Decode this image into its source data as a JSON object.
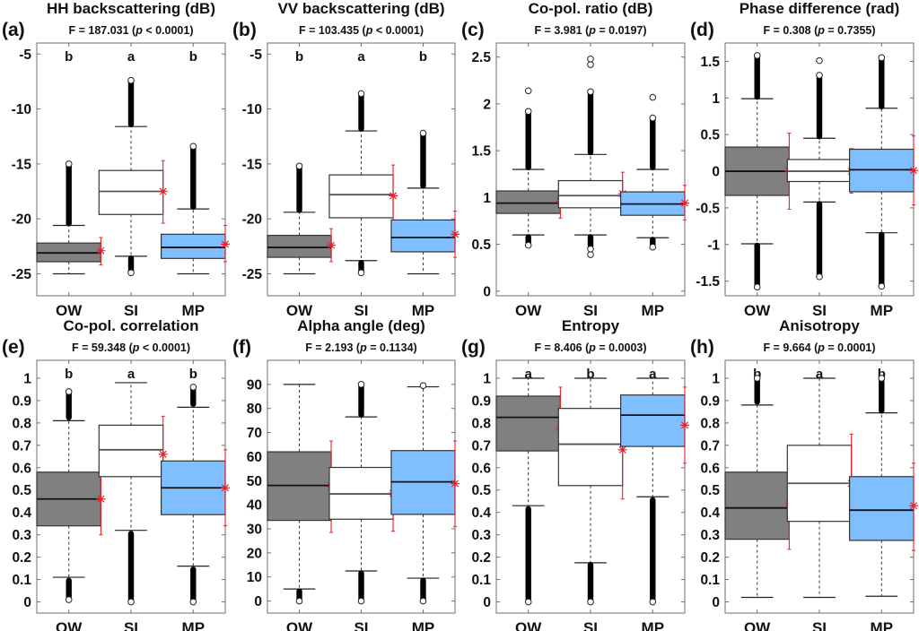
{
  "figure": {
    "colors": {
      "OW": "#808080",
      "SI": "#ffffff",
      "MP": "#80bfff",
      "mean_marker": "#e8212a",
      "outlier": "#000000"
    },
    "categories": [
      "OW",
      "SI",
      "MP"
    ],
    "legend_note": "box = IQR with median; dashed whiskers; circles = outliers; red asterisk = mean with red error bar"
  },
  "chart_data": [
    {
      "type": "boxplot",
      "panel": "(a)",
      "title": "HH backscattering (dB)",
      "stat_prefix": "F = 187.031 (",
      "p_sym": "p",
      "stat_suffix": " < 0.0001)",
      "ylim": [
        -27,
        -4
      ],
      "yticks": [
        -25,
        -20,
        -15,
        -10,
        -5
      ],
      "ytick_labels": [
        "-25",
        "-20",
        "-15",
        "-10",
        "-5"
      ],
      "group_letters": [
        "b",
        "a",
        "b"
      ],
      "categories": [
        "OW",
        "SI",
        "MP"
      ],
      "boxes": [
        {
          "name": "OW",
          "q1": -23.9,
          "median": -23.1,
          "q3": -22.2,
          "wlo": -25.0,
          "whi": -20.6,
          "out_hi": [
            -20.5,
            -15.0
          ],
          "out_lo": null,
          "mean": -22.9,
          "err_lo": -24.2,
          "err_hi": -21.7
        },
        {
          "name": "SI",
          "q1": -19.6,
          "median": -17.5,
          "q3": -15.6,
          "wlo": -23.4,
          "whi": -11.6,
          "out_hi": [
            -11.5,
            -7.4
          ],
          "out_lo": [
            -23.5,
            -24.9
          ],
          "mean": -17.5,
          "err_lo": -20.4,
          "err_hi": -14.7
        },
        {
          "name": "MP",
          "q1": -23.6,
          "median": -22.6,
          "q3": -21.4,
          "wlo": -25.0,
          "whi": -19.1,
          "out_hi": [
            -19.0,
            -13.4
          ],
          "out_lo": null,
          "mean": -22.3,
          "err_lo": -23.9,
          "err_hi": -20.6
        }
      ]
    },
    {
      "type": "boxplot",
      "panel": "(b)",
      "title": "VV backscattering (dB)",
      "stat_prefix": "F = 103.435 (",
      "p_sym": "p",
      "stat_suffix": " < 0.0001)",
      "ylim": [
        -27,
        -4
      ],
      "yticks": [
        -25,
        -20,
        -15,
        -10,
        -5
      ],
      "ytick_labels": [
        "-25",
        "-20",
        "-15",
        "-10",
        "-5"
      ],
      "group_letters": [
        "b",
        "a",
        "b"
      ],
      "categories": [
        "OW",
        "SI",
        "MP"
      ],
      "boxes": [
        {
          "name": "OW",
          "q1": -23.5,
          "median": -22.6,
          "q3": -21.5,
          "wlo": -25.0,
          "whi": -19.4,
          "out_hi": [
            -19.3,
            -15.2
          ],
          "out_lo": null,
          "mean": -22.4,
          "err_lo": -23.9,
          "err_hi": -20.9
        },
        {
          "name": "SI",
          "q1": -19.9,
          "median": -17.8,
          "q3": -16.0,
          "wlo": -23.8,
          "whi": -12.0,
          "out_hi": [
            -11.9,
            -8.6
          ],
          "out_lo": [
            -23.9,
            -24.9
          ],
          "mean": -17.9,
          "err_lo": -20.6,
          "err_hi": -15.1
        },
        {
          "name": "MP",
          "q1": -23.0,
          "median": -21.7,
          "q3": -20.1,
          "wlo": -25.0,
          "whi": -17.2,
          "out_hi": [
            -17.1,
            -12.2
          ],
          "out_lo": null,
          "mean": -21.4,
          "err_lo": -23.5,
          "err_hi": -19.3
        }
      ]
    },
    {
      "type": "boxplot",
      "panel": "(c)",
      "title": "Co-pol. ratio (dB)",
      "stat_prefix": "F = 3.981 (",
      "p_sym": "p",
      "stat_suffix": " = 0.0197)",
      "ylim": [
        -0.05,
        2.65
      ],
      "yticks": [
        0,
        0.5,
        1,
        1.5,
        2,
        2.5
      ],
      "ytick_labels": [
        "0",
        "0.5",
        "1",
        "1.5",
        "2",
        "2.5"
      ],
      "group_letters": [
        "",
        "",
        ""
      ],
      "categories": [
        "OW",
        "SI",
        "MP"
      ],
      "boxes": [
        {
          "name": "OW",
          "q1": 0.83,
          "median": 0.94,
          "q3": 1.07,
          "wlo": 0.6,
          "whi": 1.3,
          "out_hi": [
            1.31,
            1.92
          ],
          "out_lo": [
            0.59,
            0.49
          ],
          "mean": 0.96,
          "err_lo": 0.78,
          "err_hi": 1.14,
          "extra_out": [
            2.14
          ]
        },
        {
          "name": "SI",
          "q1": 0.89,
          "median": 1.02,
          "q3": 1.18,
          "wlo": 0.6,
          "whi": 1.46,
          "out_hi": [
            1.47,
            2.13
          ],
          "out_lo": [
            0.59,
            0.45
          ],
          "mean": 1.04,
          "err_lo": 0.82,
          "err_hi": 1.27,
          "extra_out": [
            2.42,
            2.48,
            0.39
          ]
        },
        {
          "name": "MP",
          "q1": 0.81,
          "median": 0.93,
          "q3": 1.06,
          "wlo": 0.57,
          "whi": 1.3,
          "out_hi": [
            1.31,
            1.85
          ],
          "out_lo": [
            0.56,
            0.47
          ],
          "mean": 0.94,
          "err_lo": 0.76,
          "err_hi": 1.13,
          "extra_out": [
            2.07
          ]
        }
      ]
    },
    {
      "type": "boxplot",
      "panel": "(d)",
      "title": "Phase difference (rad)",
      "stat_prefix": "F = 0.308 (",
      "p_sym": "p",
      "stat_suffix": " = 0.7355)",
      "ylim": [
        -1.7,
        1.75
      ],
      "yticks": [
        -1.5,
        -1,
        -0.5,
        0,
        0.5,
        1,
        1.5
      ],
      "ytick_labels": [
        "-1.5",
        "-1",
        "-0.5",
        "0",
        "0.5",
        "1",
        "1.5"
      ],
      "group_letters": [
        "",
        "",
        ""
      ],
      "categories": [
        "OW",
        "SI",
        "MP"
      ],
      "boxes": [
        {
          "name": "OW",
          "q1": -0.33,
          "median": 0.0,
          "q3": 0.33,
          "wlo": -0.99,
          "whi": 0.99,
          "out_hi": [
            1.0,
            1.58
          ],
          "out_lo": [
            -1.0,
            -1.58
          ],
          "mean": 0.0,
          "err_lo": -0.52,
          "err_hi": 0.52
        },
        {
          "name": "SI",
          "q1": -0.14,
          "median": 0.0,
          "q3": 0.16,
          "wlo": -0.42,
          "whi": 0.45,
          "out_hi": [
            0.46,
            1.31
          ],
          "out_lo": [
            -0.43,
            -1.44
          ],
          "mean": 0.0,
          "err_lo": -0.3,
          "err_hi": 0.31,
          "extra_out": [
            1.51
          ]
        },
        {
          "name": "MP",
          "q1": -0.28,
          "median": 0.02,
          "q3": 0.3,
          "wlo": -0.84,
          "whi": 0.86,
          "out_hi": [
            0.87,
            1.55
          ],
          "out_lo": [
            -0.85,
            -1.57
          ],
          "mean": 0.01,
          "err_lo": -0.46,
          "err_hi": 0.48
        }
      ]
    },
    {
      "type": "boxplot",
      "panel": "(e)",
      "title": "Co-pol. correlation",
      "stat_prefix": "F = 59.348 (",
      "p_sym": "p",
      "stat_suffix": " < 0.0001)",
      "ylim": [
        -0.05,
        1.08
      ],
      "yticks": [
        0,
        0.1,
        0.2,
        0.3,
        0.4,
        0.5,
        0.6,
        0.7,
        0.8,
        0.9,
        1
      ],
      "ytick_labels": [
        "0",
        "0.1",
        "0.2",
        "0.3",
        "0.4",
        "0.5",
        "0.6",
        "0.7",
        "0.8",
        "0.9",
        "1"
      ],
      "group_letters": [
        "b",
        "a",
        "b"
      ],
      "categories": [
        "OW",
        "SI",
        "MP"
      ],
      "boxes": [
        {
          "name": "OW",
          "q1": 0.34,
          "median": 0.46,
          "q3": 0.58,
          "wlo": 0.11,
          "whi": 0.81,
          "out_hi": [
            0.82,
            0.94
          ],
          "out_lo": [
            0.1,
            0.01
          ],
          "mean": 0.46,
          "err_lo": 0.3,
          "err_hi": 0.62
        },
        {
          "name": "SI",
          "q1": 0.56,
          "median": 0.68,
          "q3": 0.79,
          "wlo": 0.32,
          "whi": 0.98,
          "out_hi": null,
          "out_lo": [
            0.31,
            0.0
          ],
          "mean": 0.66,
          "err_lo": 0.49,
          "err_hi": 0.83
        },
        {
          "name": "MP",
          "q1": 0.39,
          "median": 0.51,
          "q3": 0.63,
          "wlo": 0.16,
          "whi": 0.87,
          "out_hi": [
            0.88,
            0.96
          ],
          "out_lo": [
            0.15,
            0.0
          ],
          "mean": 0.51,
          "err_lo": 0.34,
          "err_hi": 0.68
        }
      ]
    },
    {
      "type": "boxplot",
      "panel": "(f)",
      "title": "Alpha angle (deg)",
      "stat_prefix": "F = 2.193 (",
      "p_sym": "p",
      "stat_suffix": " = 0.1134)",
      "ylim": [
        -5,
        100
      ],
      "yticks": [
        0,
        10,
        20,
        30,
        40,
        50,
        60,
        70,
        80,
        90
      ],
      "ytick_labels": [
        "0",
        "10",
        "20",
        "30",
        "40",
        "50",
        "60",
        "70",
        "80",
        "90"
      ],
      "group_letters": [
        "",
        "",
        ""
      ],
      "categories": [
        "OW",
        "SI",
        "MP"
      ],
      "boxes": [
        {
          "name": "OW",
          "q1": 33.5,
          "median": 48.0,
          "q3": 62.0,
          "wlo": 5.0,
          "whi": 90.0,
          "out_hi": null,
          "out_lo": [
            4.5,
            0.0
          ],
          "mean": 47.5,
          "err_lo": 28.5,
          "err_hi": 66.5
        },
        {
          "name": "SI",
          "q1": 34.0,
          "median": 44.5,
          "q3": 55.5,
          "wlo": 12.5,
          "whi": 76.5,
          "out_hi": [
            77.0,
            90.0
          ],
          "out_lo": [
            12.0,
            0.0
          ],
          "mean": 44.8,
          "err_lo": 29.0,
          "err_hi": 60.5
        },
        {
          "name": "MP",
          "q1": 36.0,
          "median": 49.5,
          "q3": 62.5,
          "wlo": 9.5,
          "whi": 89.0,
          "out_hi": null,
          "out_lo": [
            9.0,
            0.0
          ],
          "mean": 48.8,
          "err_lo": 31.0,
          "err_hi": 66.5,
          "extra_out": [
            89.5
          ]
        }
      ]
    },
    {
      "type": "boxplot",
      "panel": "(g)",
      "title": "Entropy",
      "stat_prefix": "F = 8.406 (",
      "p_sym": "p",
      "stat_suffix": " = 0.0003)",
      "ylim": [
        -0.05,
        1.08
      ],
      "yticks": [
        0,
        0.1,
        0.2,
        0.3,
        0.4,
        0.5,
        0.6,
        0.7,
        0.8,
        0.9,
        1
      ],
      "ytick_labels": [
        "0",
        "0.1",
        "0.2",
        "0.3",
        "0.4",
        "0.5",
        "0.6",
        "0.7",
        "0.8",
        "0.9",
        "1"
      ],
      "group_letters": [
        "a",
        "b",
        "a"
      ],
      "categories": [
        "OW",
        "SI",
        "MP"
      ],
      "boxes": [
        {
          "name": "OW",
          "q1": 0.675,
          "median": 0.825,
          "q3": 0.92,
          "wlo": 0.43,
          "whi": 1.0,
          "out_hi": null,
          "out_lo": [
            0.42,
            0.0
          ],
          "mean": 0.775,
          "err_lo": 0.595,
          "err_hi": 0.96
        },
        {
          "name": "SI",
          "q1": 0.52,
          "median": 0.705,
          "q3": 0.865,
          "wlo": 0.175,
          "whi": 1.0,
          "out_hi": null,
          "out_lo": [
            0.17,
            0.0
          ],
          "mean": 0.68,
          "err_lo": 0.46,
          "err_hi": 0.895
        },
        {
          "name": "MP",
          "q1": 0.695,
          "median": 0.835,
          "q3": 0.925,
          "wlo": 0.47,
          "whi": 1.0,
          "out_hi": null,
          "out_lo": [
            0.46,
            0.0
          ],
          "mean": 0.79,
          "err_lo": 0.62,
          "err_hi": 0.96
        }
      ]
    },
    {
      "type": "boxplot",
      "panel": "(h)",
      "title": "Anisotropy",
      "stat_prefix": "F = 9.664 (",
      "p_sym": "p",
      "stat_suffix": " = 0.0001)",
      "ylim": [
        -0.05,
        1.08
      ],
      "yticks": [
        0,
        0.1,
        0.2,
        0.3,
        0.4,
        0.5,
        0.6,
        0.7,
        0.8,
        0.9,
        1
      ],
      "ytick_labels": [
        "0",
        "0.1",
        "0.2",
        "0.3",
        "0.4",
        "0.5",
        "0.6",
        "0.7",
        "0.8",
        "0.9",
        "1"
      ],
      "group_letters": [
        "b",
        "a",
        "b"
      ],
      "categories": [
        "OW",
        "SI",
        "MP"
      ],
      "boxes": [
        {
          "name": "OW",
          "q1": 0.28,
          "median": 0.42,
          "q3": 0.58,
          "wlo": 0.02,
          "whi": 0.88,
          "out_hi": [
            0.89,
            1.0
          ],
          "out_lo": null,
          "mean": 0.44,
          "err_lo": 0.235,
          "err_hi": 0.64
        },
        {
          "name": "SI",
          "q1": 0.36,
          "median": 0.53,
          "q3": 0.7,
          "wlo": 0.02,
          "whi": 1.0,
          "out_hi": null,
          "out_lo": null,
          "mean": 0.53,
          "err_lo": 0.31,
          "err_hi": 0.75
        },
        {
          "name": "MP",
          "q1": 0.275,
          "median": 0.41,
          "q3": 0.56,
          "wlo": 0.025,
          "whi": 0.845,
          "out_hi": [
            0.85,
            1.0
          ],
          "out_lo": null,
          "mean": 0.43,
          "err_lo": 0.23,
          "err_hi": 0.62
        }
      ]
    }
  ]
}
